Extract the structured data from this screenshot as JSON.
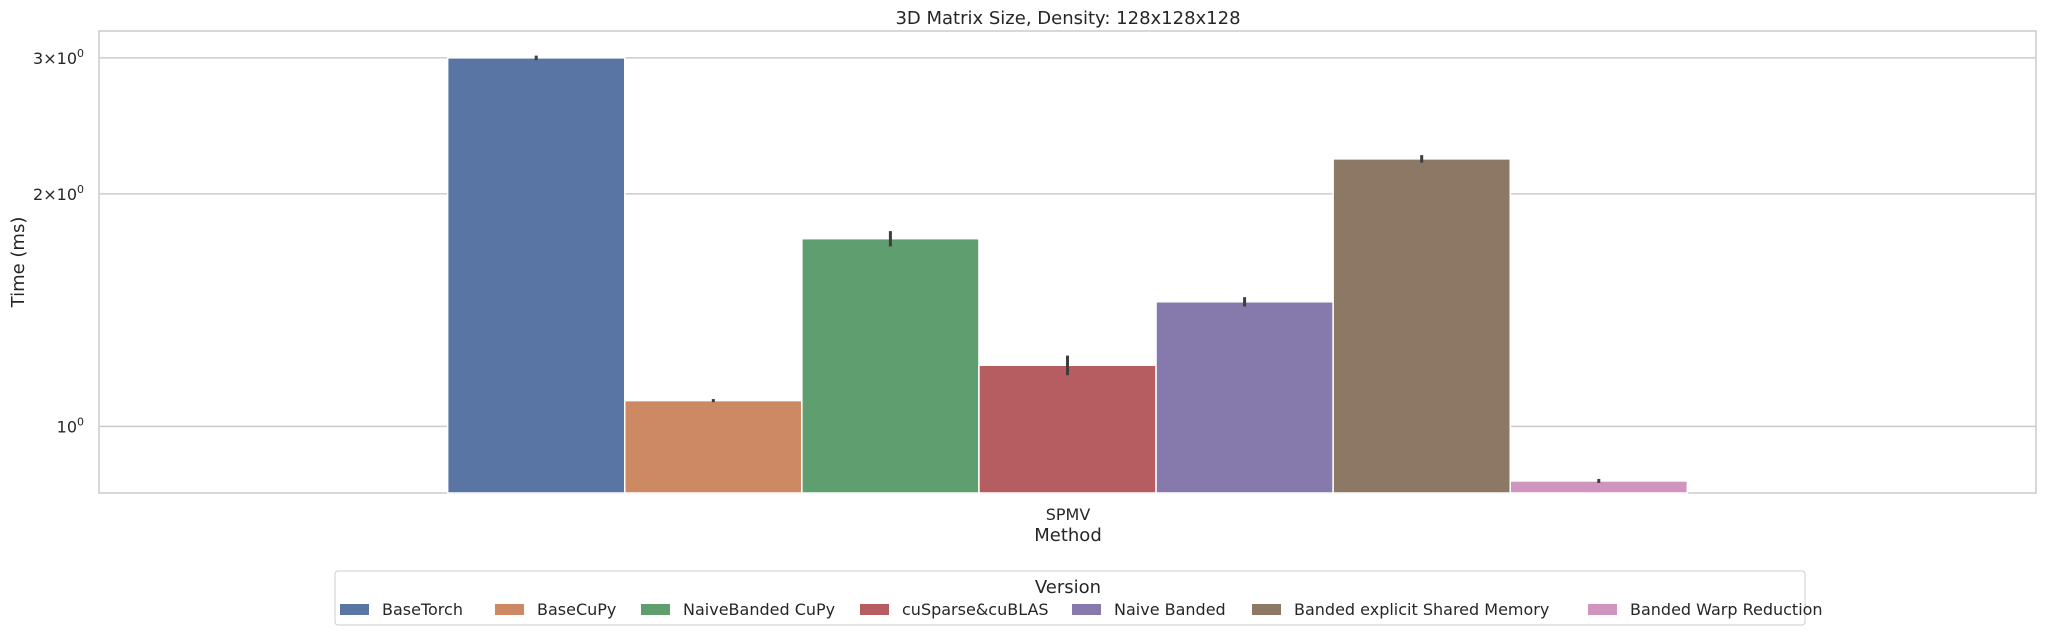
{
  "chart_data": {
    "type": "bar",
    "title": "3D Matrix Size, Density: 128x128x128",
    "xlabel": "Method",
    "ylabel": "Time (ms)",
    "yscale": "log",
    "ylim": [
      0.82,
      3.25
    ],
    "grid": true,
    "categories": [
      "SPMV"
    ],
    "y_ticks": [
      {
        "value": 1,
        "base": "10",
        "exp": "0",
        "mult": ""
      },
      {
        "value": 2,
        "base": "10",
        "exp": "0",
        "mult": "2×"
      },
      {
        "value": 3,
        "base": "10",
        "exp": "0",
        "mult": "3×"
      }
    ],
    "legend": {
      "title": "Version",
      "position": "bottom-center"
    },
    "series": [
      {
        "name": "BaseTorch",
        "values": [
          3.0
        ],
        "err": [
          0.02
        ],
        "color": "#5975a4"
      },
      {
        "name": "BaseCuPy",
        "values": [
          1.08
        ],
        "err": [
          0.005
        ],
        "color": "#cc8963"
      },
      {
        "name": "NaiveBanded CuPy",
        "values": [
          1.75
        ],
        "err": [
          0.04
        ],
        "color": "#5f9e6e"
      },
      {
        "name": "cuSparse&cuBLAS",
        "values": [
          1.2
        ],
        "err": [
          0.035
        ],
        "color": "#b55d60"
      },
      {
        "name": "Naive Banded",
        "values": [
          1.45
        ],
        "err": [
          0.02
        ],
        "color": "#857aab"
      },
      {
        "name": "Banded explicit Shared Memory",
        "values": [
          2.22
        ],
        "err": [
          0.025
        ],
        "color": "#8d7866"
      },
      {
        "name": "Banded Warp Reduction",
        "values": [
          0.85
        ],
        "err": [
          0.005
        ],
        "color": "#d095bf"
      }
    ]
  }
}
